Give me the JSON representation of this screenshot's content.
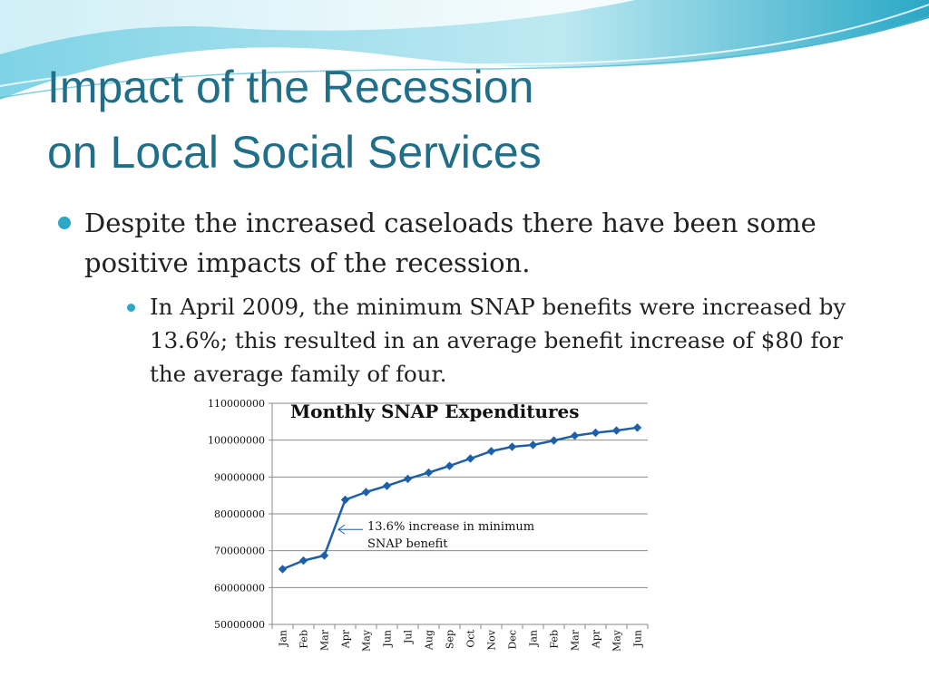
{
  "slide": {
    "title_line1": "Impact of the Recession",
    "title_line2": "on Local Social Services",
    "bullet1": "Despite the increased caseloads there have been some positive impacts of the recession.",
    "bullet2": "In April 2009, the minimum SNAP benefits were increased by 13.6%; this resulted in an average benefit increase of $80 for the average family of four.",
    "theme_color": "#1f6f8b",
    "bullet_color": "#2aa8c6"
  },
  "chart_data": {
    "type": "line",
    "title": "Monthly SNAP Expenditures",
    "xlabel": "",
    "ylabel": "",
    "categories": [
      "Jan",
      "Feb",
      "Mar",
      "Apr",
      "May",
      "Jun",
      "Jul",
      "Aug",
      "Sep",
      "Oct",
      "Nov",
      "Dec",
      "Jan",
      "Feb",
      "Mar",
      "Apr",
      "May",
      "Jun"
    ],
    "series": [
      {
        "values": [
          65000000,
          67300000,
          68700000,
          83800000,
          85900000,
          87600000,
          89500000,
          91200000,
          93000000,
          95000000,
          97000000,
          98200000,
          98700000,
          99900000,
          101200000,
          102000000,
          102600000,
          103400000
        ],
        "color": "#1f5fa8"
      }
    ],
    "ylim": [
      50000000,
      110000000
    ],
    "yticks": [
      "50000000",
      "60000000",
      "70000000",
      "80000000",
      "90000000",
      "100000000",
      "110000000"
    ],
    "grid": true,
    "annotation": {
      "line1": "13.6% increase in minimum",
      "line2": "SNAP benefit",
      "points_to": "Apr"
    }
  }
}
